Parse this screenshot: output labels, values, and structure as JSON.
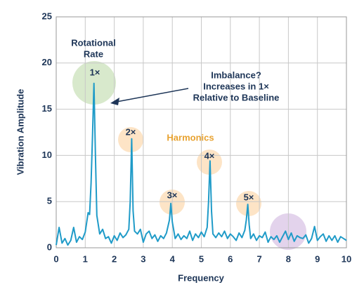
{
  "chart_data": {
    "type": "line",
    "xlabel": "Frequency",
    "ylabel": "Vibration Amplitude",
    "x": [
      0,
      0.1,
      0.2,
      0.3,
      0.4,
      0.5,
      0.6,
      0.7,
      0.8,
      0.9,
      1.0,
      1.1,
      1.15,
      1.2,
      1.25,
      1.3,
      1.35,
      1.4,
      1.5,
      1.6,
      1.7,
      1.8,
      1.9,
      2.0,
      2.1,
      2.2,
      2.3,
      2.4,
      2.5,
      2.55,
      2.6,
      2.65,
      2.7,
      2.8,
      2.9,
      3.0,
      3.1,
      3.2,
      3.3,
      3.4,
      3.5,
      3.6,
      3.7,
      3.8,
      3.9,
      3.95,
      4.0,
      4.1,
      4.2,
      4.3,
      4.4,
      4.5,
      4.6,
      4.7,
      4.8,
      4.9,
      5.0,
      5.1,
      5.2,
      5.25,
      5.3,
      5.35,
      5.4,
      5.5,
      5.6,
      5.7,
      5.8,
      5.9,
      6.0,
      6.1,
      6.2,
      6.3,
      6.4,
      6.5,
      6.55,
      6.6,
      6.65,
      6.7,
      6.8,
      6.9,
      7.0,
      7.1,
      7.2,
      7.3,
      7.4,
      7.5,
      7.6,
      7.7,
      7.8,
      7.9,
      8.0,
      8.1,
      8.2,
      8.3,
      8.4,
      8.5,
      8.6,
      8.7,
      8.8,
      8.9,
      9.0,
      9.1,
      9.2,
      9.3,
      9.4,
      9.5,
      9.6,
      9.7,
      9.8,
      9.9,
      10.0
    ],
    "series": [
      {
        "color": "#1f9bc8",
        "values": [
          0.3,
          2.2,
          0.5,
          1.0,
          0.3,
          0.8,
          2.2,
          0.6,
          1.2,
          0.9,
          1.7,
          3.8,
          3.6,
          7,
          12,
          17.8,
          10,
          3.5,
          1.5,
          2.0,
          1.0,
          1.2,
          0.5,
          1.3,
          0.8,
          1.6,
          1.1,
          1.4,
          2.0,
          5,
          11.8,
          4,
          1.8,
          1.5,
          2.0,
          0.6,
          1.5,
          1.8,
          1.0,
          1.4,
          0.7,
          1.3,
          1.0,
          1.6,
          3,
          4.8,
          2.8,
          1.0,
          1.5,
          0.9,
          1.3,
          1.0,
          1.8,
          0.8,
          1.5,
          1.1,
          1.7,
          1.2,
          2.2,
          5,
          9.4,
          4,
          1.5,
          1.1,
          1.6,
          1.2,
          1.8,
          1.0,
          1.5,
          1.2,
          0.8,
          1.6,
          1.1,
          1.9,
          3,
          4.7,
          2.5,
          1.0,
          1.5,
          0.8,
          1.3,
          1.1,
          1.7,
          0.6,
          1.2,
          0.9,
          1.3,
          0.6,
          1.2,
          1.8,
          0.9,
          1.6,
          0.7,
          1.3,
          1.1,
          1.0,
          1.4,
          0.5,
          1.0,
          2.3,
          0.8,
          1.2,
          1.5,
          0.7,
          1.3,
          0.8,
          1.3,
          0.6,
          1.2,
          1.0,
          0.8
        ]
      }
    ],
    "xlim": [
      0,
      10
    ],
    "xticks": [
      0,
      1,
      2,
      3,
      4,
      5,
      6,
      7,
      8,
      9,
      10
    ],
    "ylim": [
      0,
      25
    ],
    "yticks": [
      0,
      5,
      10,
      15,
      20,
      25
    ],
    "grid": true,
    "annotations": [
      [
        "Rotational",
        "Rate"
      ],
      [
        "1×"
      ],
      [
        "Imbalance?",
        "Increases in 1×",
        "Relative to Baseline"
      ],
      [
        "2×"
      ],
      [
        "Harmonics"
      ],
      [
        "3×"
      ],
      [
        "4×"
      ],
      [
        "5×"
      ]
    ]
  }
}
